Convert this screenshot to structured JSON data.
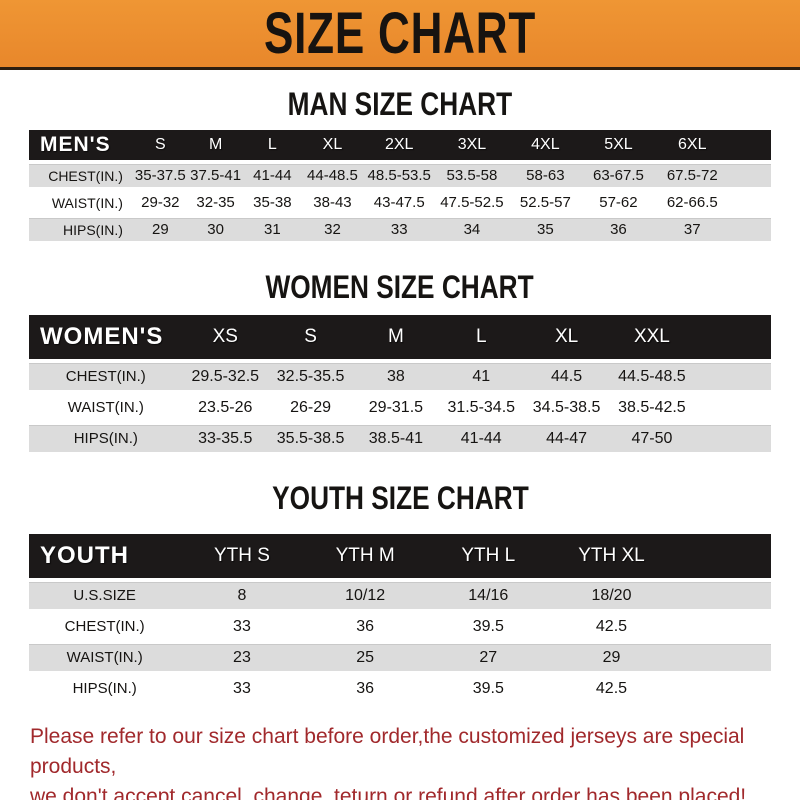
{
  "banner": {
    "title": "SIZE CHART"
  },
  "colors": {
    "banner_orange": "#E8872B",
    "header_black": "#1C1919",
    "row_stripe_gray": "#DCDCDC",
    "footer_red": "#A1292C"
  },
  "sections": [
    {
      "title": "MAN SIZE CHART",
      "table": {
        "header_label": "MEN'S",
        "columns": [
          "S",
          "M",
          "L",
          "XL",
          "2XL",
          "3XL",
          "4XL",
          "5XL",
          "6XL"
        ],
        "rows": [
          {
            "label": "CHEST(IN.)",
            "values": [
              "35-37.5",
              "37.5-41",
              "41-44",
              "44-48.5",
              "48.5-53.5",
              "53.5-58",
              "58-63",
              "63-67.5",
              "67.5-72"
            ]
          },
          {
            "label": "WAIST(IN.)",
            "values": [
              "29-32",
              "32-35",
              "35-38",
              "38-43",
              "43-47.5",
              "47.5-52.5",
              "52.5-57",
              "57-62",
              "62-66.5"
            ]
          },
          {
            "label": "HIPS(IN.)",
            "values": [
              "29",
              "30",
              "31",
              "32",
              "33",
              "34",
              "35",
              "36",
              "37"
            ]
          }
        ]
      }
    },
    {
      "title": "WOMEN SIZE CHART",
      "table": {
        "header_label": "WOMEN'S",
        "columns": [
          "XS",
          "S",
          "M",
          "L",
          "XL",
          "XXL"
        ],
        "rows": [
          {
            "label": "CHEST(IN.)",
            "values": [
              "29.5-32.5",
              "32.5-35.5",
              "38",
              "41",
              "44.5",
              "44.5-48.5"
            ]
          },
          {
            "label": "WAIST(IN.)",
            "values": [
              "23.5-26",
              "26-29",
              "29-31.5",
              "31.5-34.5",
              "34.5-38.5",
              "38.5-42.5"
            ]
          },
          {
            "label": "HIPS(IN.)",
            "values": [
              "33-35.5",
              "35.5-38.5",
              "38.5-41",
              "41-44",
              "44-47",
              "47-50"
            ]
          }
        ]
      }
    },
    {
      "title": "YOUTH SIZE CHART",
      "table": {
        "header_label": "YOUTH",
        "columns": [
          "YTH S",
          "YTH M",
          "YTH L",
          "YTH XL"
        ],
        "rows": [
          {
            "label": "U.S.SIZE",
            "values": [
              "8",
              "10/12",
              "14/16",
              "18/20"
            ]
          },
          {
            "label": "CHEST(IN.)",
            "values": [
              "33",
              "36",
              "39.5",
              "42.5"
            ]
          },
          {
            "label": "WAIST(IN.)",
            "values": [
              "23",
              "25",
              "27",
              "29"
            ]
          },
          {
            "label": "HIPS(IN.)",
            "values": [
              "33",
              "36",
              "39.5",
              "42.5"
            ]
          }
        ]
      }
    }
  ],
  "footer": {
    "line1": "Please refer to our size chart before order,the customized jerseys are special products,",
    "line2": "we don't accept cancel, change, teturn or refund after order has been placed!"
  }
}
